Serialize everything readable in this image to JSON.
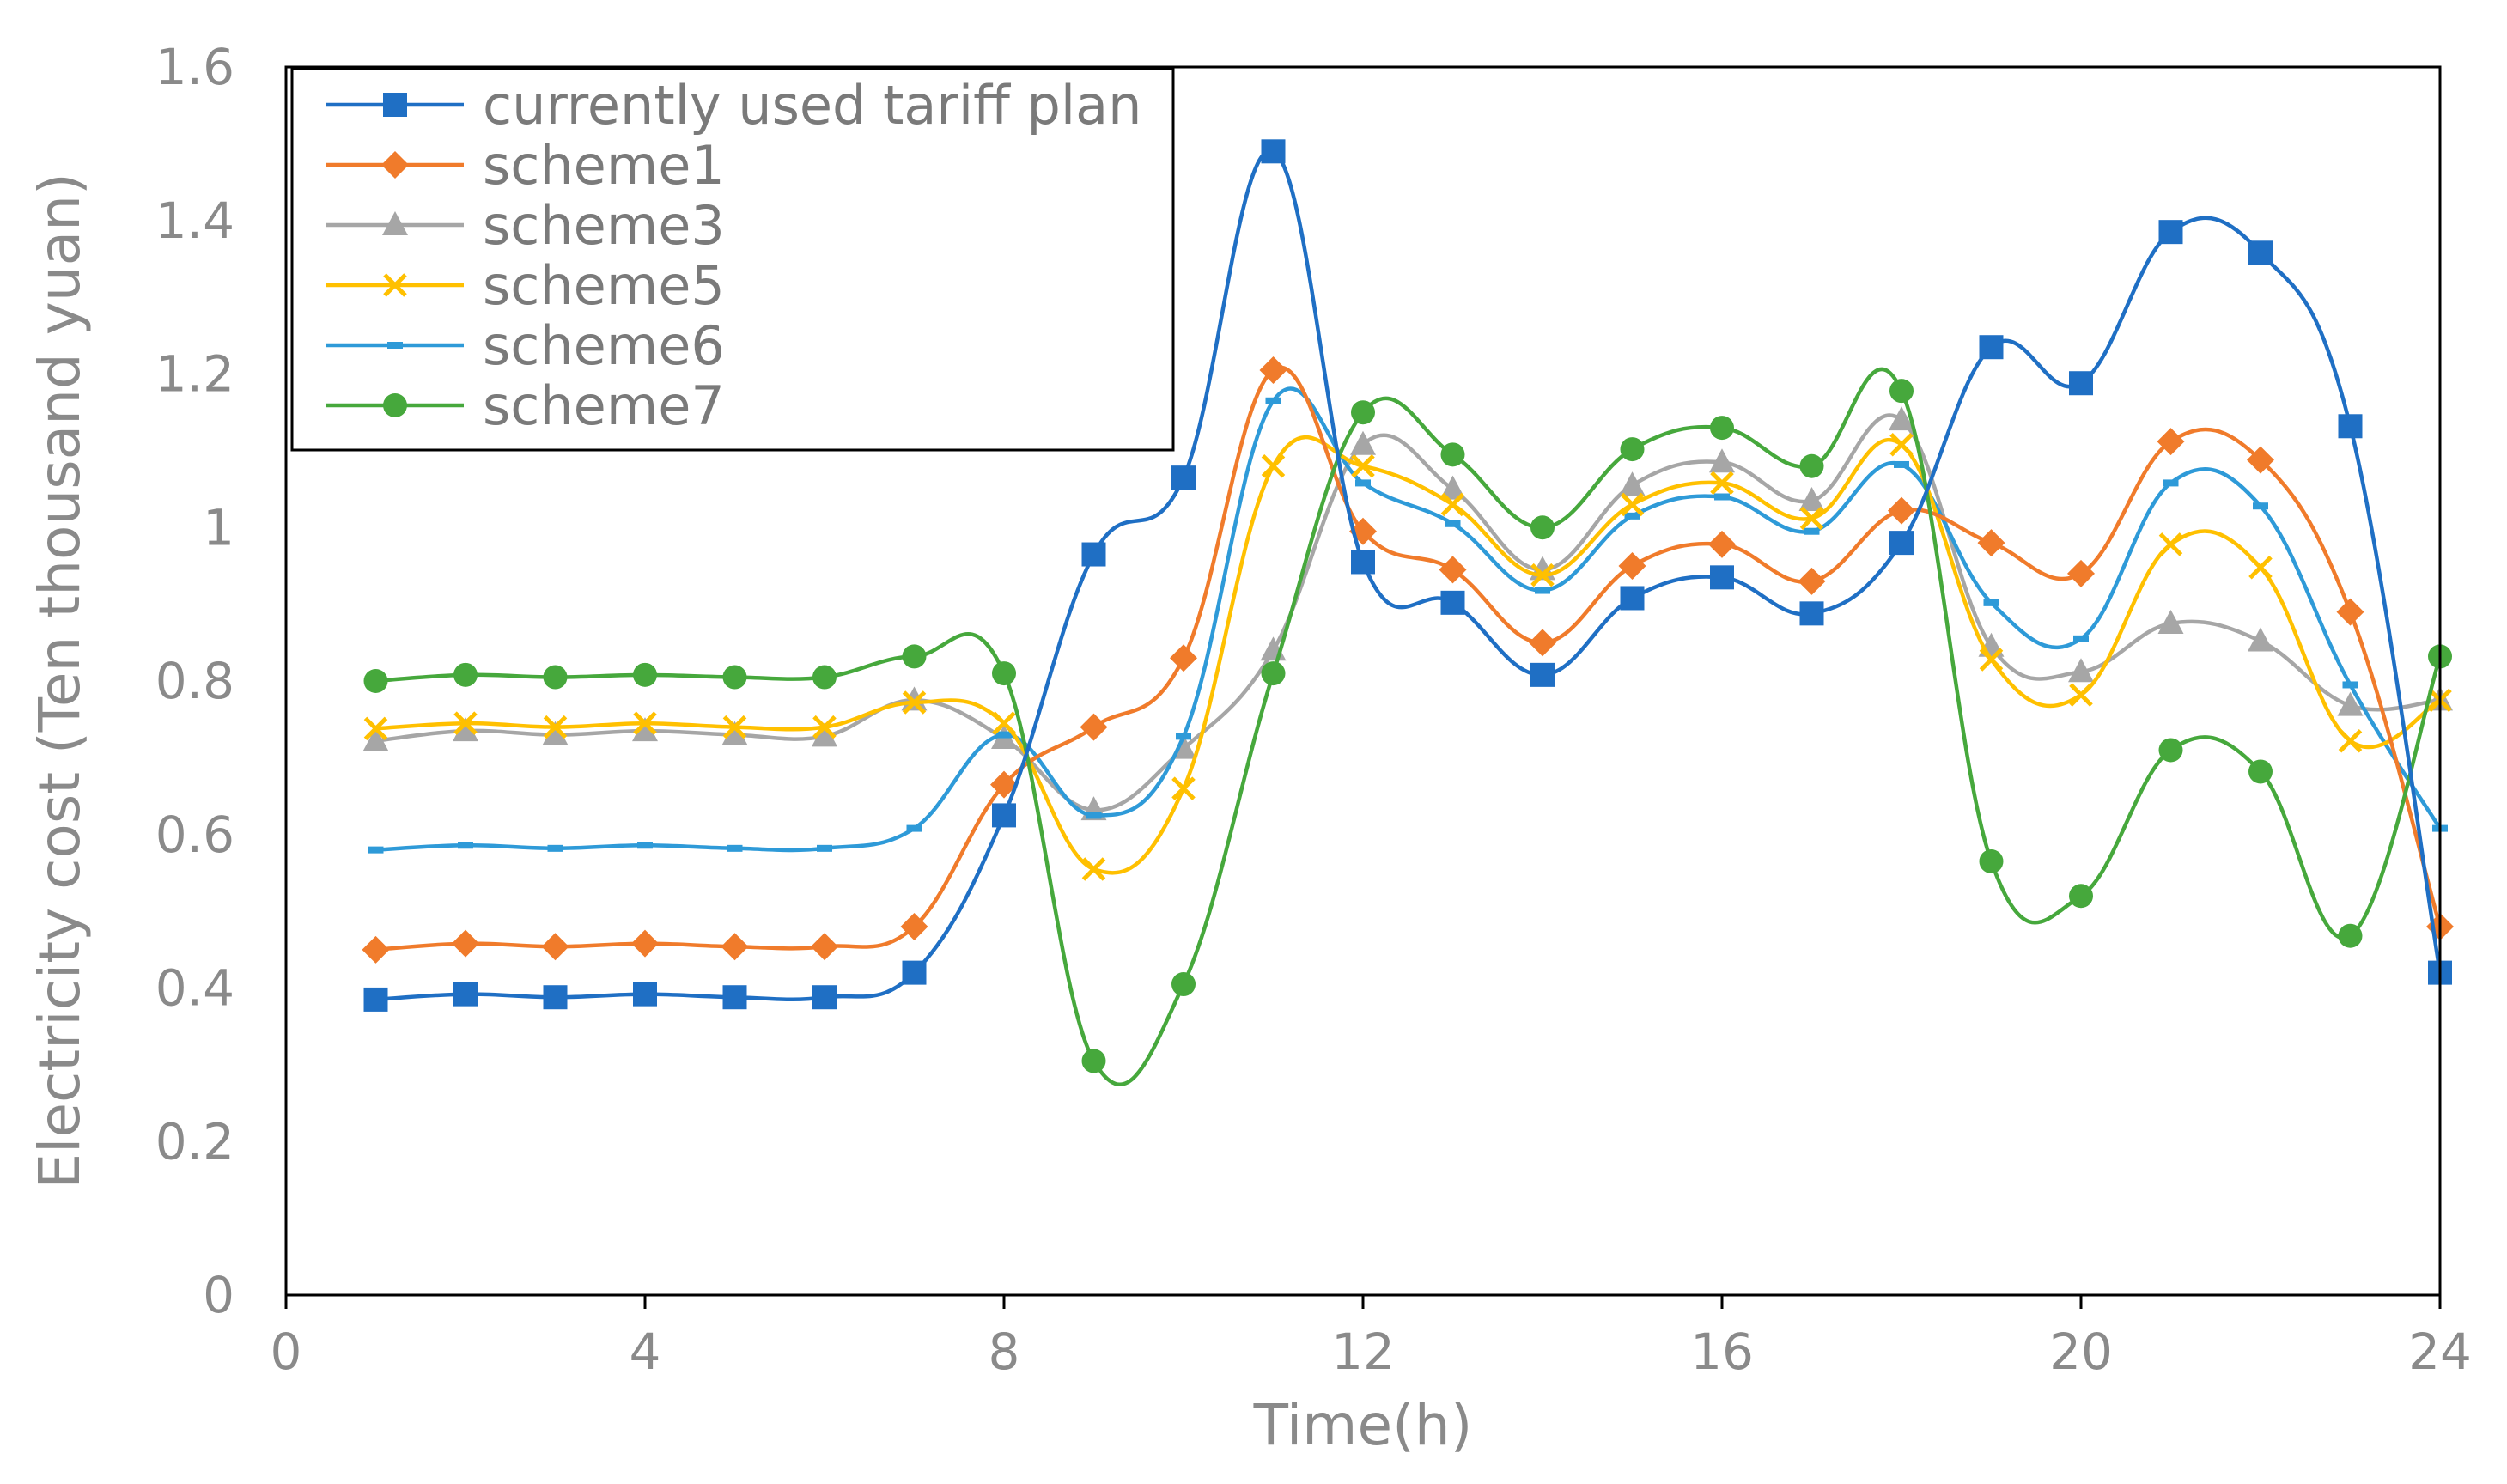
{
  "chart_data": {
    "type": "line",
    "title": "",
    "xlabel": "Time(h)",
    "ylabel": "Electricity cost (Ten thousand yuan)",
    "xlim": [
      0,
      24
    ],
    "ylim": [
      0,
      1.6
    ],
    "xticks": [
      0,
      4,
      8,
      12,
      16,
      20,
      24
    ],
    "yticks": [
      0,
      0.2,
      0.4,
      0.6,
      0.8,
      1,
      1.2,
      1.4,
      1.6
    ],
    "ytick_labels": [
      "0",
      "0.2",
      "0.4",
      "0.6",
      "0.8",
      "1",
      "1.2",
      "1.4",
      "1.6"
    ],
    "legend_position": "top-left",
    "grid": false,
    "x": [
      1,
      2,
      3,
      4,
      5,
      6,
      7,
      8,
      9,
      10,
      11,
      12,
      13,
      14,
      15,
      16,
      17,
      18,
      19,
      20,
      21,
      22,
      23,
      24
    ],
    "series": [
      {
        "name": "currently used tariff plan",
        "color": "#1f6fc4",
        "marker": "square",
        "values": [
          0.385,
          0.392,
          0.388,
          0.392,
          0.388,
          0.388,
          0.42,
          0.625,
          0.965,
          1.065,
          1.49,
          0.955,
          0.902,
          0.808,
          0.908,
          0.935,
          0.888,
          0.98,
          1.235,
          1.188,
          1.385,
          1.358,
          1.132,
          0.42
        ]
      },
      {
        "name": "scheme1",
        "color": "#f07b2b",
        "marker": "diamond",
        "values": [
          0.45,
          0.458,
          0.454,
          0.458,
          0.454,
          0.454,
          0.48,
          0.665,
          0.74,
          0.83,
          1.205,
          0.995,
          0.945,
          0.85,
          0.95,
          0.978,
          0.93,
          1.022,
          0.98,
          0.94,
          1.112,
          1.088,
          0.89,
          0.48
        ]
      },
      {
        "name": "scheme3",
        "color": "#a6a6a6",
        "marker": "triangle",
        "values": [
          0.722,
          0.735,
          0.73,
          0.735,
          0.73,
          0.728,
          0.775,
          0.725,
          0.632,
          0.712,
          0.84,
          1.108,
          1.05,
          0.945,
          1.055,
          1.085,
          1.035,
          1.14,
          0.845,
          0.812,
          0.875,
          0.852,
          0.768,
          0.775
        ]
      },
      {
        "name": "scheme5",
        "color": "#ffc000",
        "marker": "x",
        "values": [
          0.738,
          0.745,
          0.74,
          0.745,
          0.74,
          0.74,
          0.772,
          0.745,
          0.555,
          0.66,
          1.08,
          1.08,
          1.03,
          0.938,
          1.03,
          1.058,
          1.012,
          1.108,
          0.828,
          0.782,
          0.978,
          0.948,
          0.722,
          0.775
        ]
      },
      {
        "name": "scheme6",
        "color": "#2e9ad8",
        "marker": "dash",
        "values": [
          0.58,
          0.586,
          0.582,
          0.586,
          0.582,
          0.582,
          0.608,
          0.73,
          0.625,
          0.728,
          1.165,
          1.058,
          1.005,
          0.918,
          1.015,
          1.04,
          0.995,
          1.082,
          0.902,
          0.855,
          1.058,
          1.028,
          0.795,
          0.608
        ]
      },
      {
        "name": "scheme7",
        "color": "#46a83c",
        "marker": "circle",
        "values": [
          0.8,
          0.808,
          0.805,
          0.808,
          0.805,
          0.805,
          0.832,
          0.81,
          0.305,
          0.405,
          0.81,
          1.15,
          1.095,
          1.0,
          1.102,
          1.13,
          1.08,
          1.178,
          0.565,
          0.52,
          0.71,
          0.682,
          0.468,
          0.832
        ]
      }
    ]
  }
}
